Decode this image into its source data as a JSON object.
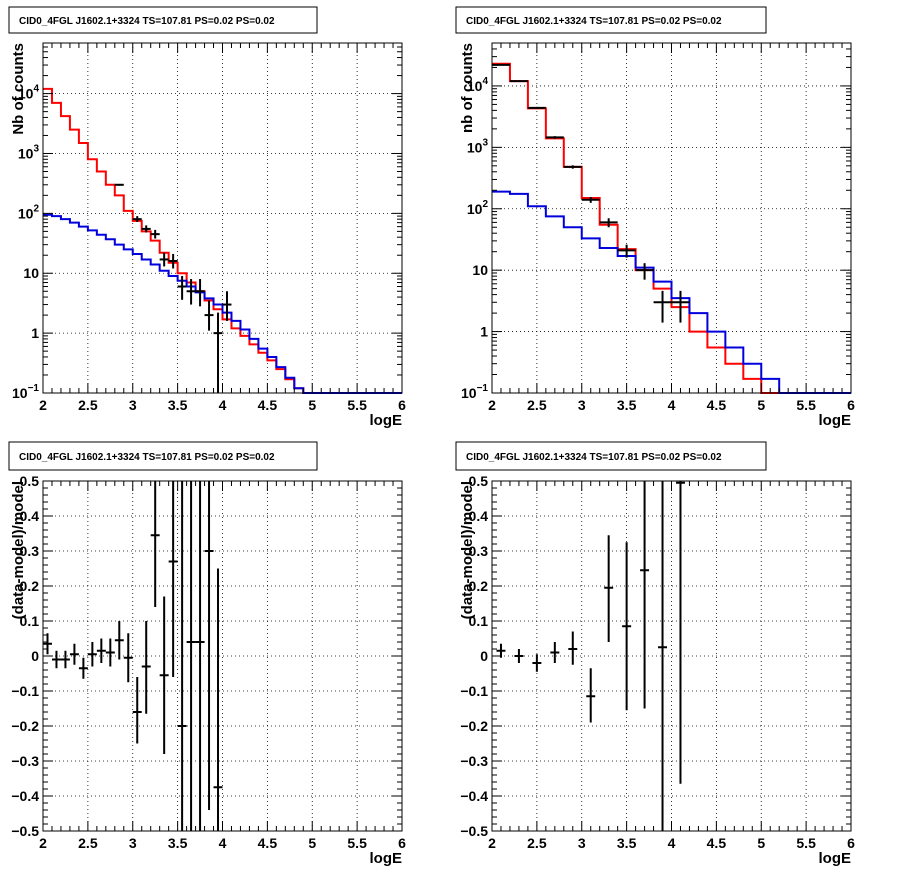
{
  "colors": {
    "data": "#000000",
    "total_model": "#ff0000",
    "background_model": "#0000dd",
    "grid": "#000000"
  },
  "chart_data": [
    {
      "id": "top-left",
      "type": "line",
      "title": "CID0_4FGL J1602.1+3324 TS=107.81 PS=0.02 PS=0.02",
      "xlabel": "logE",
      "ylabel": "Nb of counts",
      "xlim": [
        2,
        6
      ],
      "ylim": [
        0.1,
        70000
      ],
      "yscale": "log",
      "grid": true,
      "xticks": [
        2,
        2.5,
        3,
        3.5,
        4,
        4.5,
        5,
        5.5,
        6
      ],
      "xtick_labels": [
        "2",
        "2.5",
        "3",
        "3.5",
        "4",
        "4.5",
        "5",
        "5.5",
        "6"
      ],
      "yticks": [
        0.1,
        1,
        10,
        100,
        1000,
        10000
      ],
      "ytick_labels": [
        {
          "base": "10",
          "exp": "−1"
        },
        {
          "base": "1",
          "exp": ""
        },
        {
          "base": "10",
          "exp": ""
        },
        {
          "base": "10",
          "exp": "2"
        },
        {
          "base": "10",
          "exp": "3"
        },
        {
          "base": "10",
          "exp": "4"
        }
      ],
      "bin_edges": [
        2,
        2.1,
        2.2,
        2.3,
        2.4,
        2.5,
        2.6,
        2.7,
        2.8,
        2.9,
        3,
        3.1,
        3.2,
        3.3,
        3.4,
        3.5,
        3.6,
        3.7,
        3.8,
        3.9,
        4,
        4.1,
        4.2,
        4.3,
        4.4,
        4.5,
        4.6,
        4.7,
        4.8,
        4.9,
        5,
        5.1,
        5.2,
        5.3,
        5.4,
        5.5,
        5.6,
        5.7,
        5.8,
        5.9,
        6
      ],
      "series": [
        {
          "name": "total model",
          "color": "#ff0000",
          "values": [
            12000,
            7000,
            4200,
            2500,
            1500,
            800,
            500,
            300,
            200,
            110,
            75,
            50,
            35,
            22,
            15,
            10,
            7,
            5,
            3.5,
            2.5,
            1.7,
            1.2,
            0.9,
            0.65,
            0.47,
            0.35,
            0.25,
            0.17,
            0.12,
            0.1,
            0.1,
            0.1,
            0.1,
            0.1,
            0.1,
            0.1,
            0.1,
            0.1,
            0.1,
            0.1
          ]
        },
        {
          "name": "background model",
          "color": "#0000dd",
          "values": [
            95,
            90,
            80,
            70,
            60,
            52,
            44,
            37,
            30,
            25,
            21,
            17,
            14,
            11,
            9,
            7.5,
            6,
            4.8,
            3.8,
            3,
            2.2,
            1.6,
            1.15,
            0.8,
            0.55,
            0.4,
            0.27,
            0.18,
            0.12,
            0.1,
            0.1,
            0.1,
            0.1,
            0.1,
            0.1,
            0.1,
            0.1,
            0.1,
            0.1,
            0.1
          ]
        }
      ],
      "points": [
        {
          "x": 2.85,
          "y": 300,
          "ylo": 290,
          "yhi": 310
        },
        {
          "x": 3.05,
          "y": 80,
          "ylo": 72,
          "yhi": 90
        },
        {
          "x": 3.15,
          "y": 55,
          "ylo": 48,
          "yhi": 63
        },
        {
          "x": 3.25,
          "y": 45,
          "ylo": 38,
          "yhi": 53
        },
        {
          "x": 3.35,
          "y": 17,
          "ylo": 13,
          "yhi": 22
        },
        {
          "x": 3.45,
          "y": 16,
          "ylo": 12,
          "yhi": 21
        },
        {
          "x": 3.55,
          "y": 6,
          "ylo": 3.6,
          "yhi": 9
        },
        {
          "x": 3.65,
          "y": 5,
          "ylo": 3,
          "yhi": 8
        },
        {
          "x": 3.75,
          "y": 5,
          "ylo": 2.8,
          "yhi": 8
        },
        {
          "x": 3.85,
          "y": 2,
          "ylo": 1.1,
          "yhi": 3.5
        },
        {
          "x": 3.95,
          "y": 1,
          "ylo": 0.1,
          "yhi": 2.2
        },
        {
          "x": 4.05,
          "y": 3,
          "ylo": 1.6,
          "yhi": 5
        }
      ]
    },
    {
      "id": "top-right",
      "type": "line",
      "title": "CID0_4FGL J1602.1+3324 TS=107.81 PS=0.02 PS=0.02",
      "xlabel": "logE",
      "ylabel": "nb of counts",
      "xlim": [
        2,
        6
      ],
      "ylim": [
        0.1,
        50000
      ],
      "yscale": "log",
      "grid": true,
      "xticks": [
        2,
        2.5,
        3,
        3.5,
        4,
        4.5,
        5,
        5.5,
        6
      ],
      "xtick_labels": [
        "2",
        "2.5",
        "3",
        "3.5",
        "4",
        "4.5",
        "5",
        "5.5",
        "6"
      ],
      "yticks": [
        0.1,
        1,
        10,
        100,
        1000,
        10000
      ],
      "ytick_labels": [
        {
          "base": "10",
          "exp": "−1"
        },
        {
          "base": "1",
          "exp": ""
        },
        {
          "base": "10",
          "exp": ""
        },
        {
          "base": "10",
          "exp": "2"
        },
        {
          "base": "10",
          "exp": "3"
        },
        {
          "base": "10",
          "exp": "4"
        }
      ],
      "bin_edges": [
        2,
        2.2,
        2.4,
        2.6,
        2.8,
        3,
        3.2,
        3.4,
        3.6,
        3.8,
        4,
        4.2,
        4.4,
        4.6,
        4.8,
        5,
        5.2,
        5.4,
        5.6,
        5.8,
        6
      ],
      "series": [
        {
          "name": "total model",
          "color": "#ff0000",
          "values": [
            23000,
            12000,
            4300,
            1400,
            480,
            150,
            55,
            22,
            10,
            5,
            2.5,
            1,
            0.55,
            0.3,
            0.17,
            0.1,
            0.1,
            0.1,
            0.1,
            0.1
          ]
        },
        {
          "name": "background model",
          "color": "#0000dd",
          "values": [
            190,
            175,
            110,
            75,
            50,
            33,
            23,
            17,
            11,
            6.5,
            3.5,
            2,
            1,
            0.55,
            0.3,
            0.17,
            0.1,
            0.1,
            0.1,
            0.1
          ]
        }
      ],
      "points": [
        {
          "x": 2.1,
          "y": 22000,
          "ylo": 21500,
          "yhi": 22500
        },
        {
          "x": 2.3,
          "y": 12000,
          "ylo": 11700,
          "yhi": 12300
        },
        {
          "x": 2.5,
          "y": 4400,
          "ylo": 4250,
          "yhi": 4550
        },
        {
          "x": 2.7,
          "y": 1450,
          "ylo": 1380,
          "yhi": 1520
        },
        {
          "x": 2.9,
          "y": 480,
          "ylo": 450,
          "yhi": 510
        },
        {
          "x": 3.1,
          "y": 140,
          "ylo": 125,
          "yhi": 155
        },
        {
          "x": 3.3,
          "y": 60,
          "ylo": 50,
          "yhi": 70
        },
        {
          "x": 3.5,
          "y": 21,
          "ylo": 16,
          "yhi": 26
        },
        {
          "x": 3.7,
          "y": 10,
          "ylo": 7,
          "yhi": 13
        },
        {
          "x": 3.9,
          "y": 3,
          "ylo": 1.4,
          "yhi": 4.6
        },
        {
          "x": 4.1,
          "y": 3,
          "ylo": 1.4,
          "yhi": 4.6
        }
      ]
    },
    {
      "id": "bottom-left",
      "type": "scatter",
      "title": "CID0_4FGL J1602.1+3324 TS=107.81 PS=0.02 PS=0.02",
      "xlabel": "logE",
      "ylabel": "(data-model)/model",
      "xlim": [
        2,
        6
      ],
      "ylim": [
        -0.5,
        0.5
      ],
      "yscale": "linear",
      "grid": true,
      "xticks": [
        2,
        2.5,
        3,
        3.5,
        4,
        4.5,
        5,
        5.5,
        6
      ],
      "xtick_labels": [
        "2",
        "2.5",
        "3",
        "3.5",
        "4",
        "4.5",
        "5",
        "5.5",
        "6"
      ],
      "yticks": [
        -0.5,
        -0.4,
        -0.3,
        -0.2,
        -0.1,
        0,
        0.1,
        0.2,
        0.3,
        0.4,
        0.5
      ],
      "ytick_labels": [
        "−0.5",
        "−0.4",
        "−0.3",
        "−0.2",
        "−0.1",
        "0",
        "0.1",
        "0.2",
        "0.3",
        "0.4",
        "0.5"
      ],
      "series": [],
      "points": [
        {
          "x": 2.05,
          "y": 0.035,
          "ylo": 0.005,
          "yhi": 0.065
        },
        {
          "x": 2.15,
          "y": -0.01,
          "ylo": -0.035,
          "yhi": 0.015
        },
        {
          "x": 2.25,
          "y": -0.01,
          "ylo": -0.035,
          "yhi": 0.015
        },
        {
          "x": 2.35,
          "y": 0.005,
          "ylo": -0.025,
          "yhi": 0.035
        },
        {
          "x": 2.45,
          "y": -0.035,
          "ylo": -0.065,
          "yhi": -0.005
        },
        {
          "x": 2.55,
          "y": 0.005,
          "ylo": -0.03,
          "yhi": 0.04
        },
        {
          "x": 2.65,
          "y": 0.015,
          "ylo": -0.02,
          "yhi": 0.05
        },
        {
          "x": 2.75,
          "y": 0.01,
          "ylo": -0.03,
          "yhi": 0.05
        },
        {
          "x": 2.85,
          "y": 0.045,
          "ylo": -0.01,
          "yhi": 0.1
        },
        {
          "x": 2.95,
          "y": -0.005,
          "ylo": -0.075,
          "yhi": 0.065
        },
        {
          "x": 3.05,
          "y": -0.16,
          "ylo": -0.25,
          "yhi": -0.06
        },
        {
          "x": 3.15,
          "y": -0.03,
          "ylo": -0.165,
          "yhi": 0.1
        },
        {
          "x": 3.25,
          "y": 0.345,
          "ylo": 0.14,
          "yhi": 0.5
        },
        {
          "x": 3.35,
          "y": -0.055,
          "ylo": -0.28,
          "yhi": 0.17
        },
        {
          "x": 3.45,
          "y": 0.27,
          "ylo": -0.06,
          "yhi": 0.5
        },
        {
          "x": 3.55,
          "y": -0.2,
          "ylo": -0.5,
          "yhi": 0.5
        },
        {
          "x": 3.65,
          "y": 0.04,
          "ylo": -0.5,
          "yhi": 0.5
        },
        {
          "x": 3.75,
          "y": 0.04,
          "ylo": -0.5,
          "yhi": 0.5
        },
        {
          "x": 3.85,
          "y": 0.3,
          "ylo": -0.44,
          "yhi": 0.5
        },
        {
          "x": 3.95,
          "y": -0.375,
          "ylo": -0.5,
          "yhi": 0.25
        }
      ]
    },
    {
      "id": "bottom-right",
      "type": "scatter",
      "title": "CID0_4FGL J1602.1+3324 TS=107.81 PS=0.02 PS=0.02",
      "xlabel": "logE",
      "ylabel": "(data-model)/model",
      "xlim": [
        2,
        6
      ],
      "ylim": [
        -0.5,
        0.5
      ],
      "yscale": "linear",
      "grid": true,
      "xticks": [
        2,
        2.5,
        3,
        3.5,
        4,
        4.5,
        5,
        5.5,
        6
      ],
      "xtick_labels": [
        "2",
        "2.5",
        "3",
        "3.5",
        "4",
        "4.5",
        "5",
        "5.5",
        "6"
      ],
      "yticks": [
        -0.5,
        -0.4,
        -0.3,
        -0.2,
        -0.1,
        0,
        0.1,
        0.2,
        0.3,
        0.4,
        0.5
      ],
      "ytick_labels": [
        "−0.5",
        "−0.4",
        "−0.3",
        "−0.2",
        "−0.1",
        "0",
        "0.1",
        "0.2",
        "0.3",
        "0.4",
        "0.5"
      ],
      "series": [],
      "points": [
        {
          "x": 2.1,
          "y": 0.015,
          "ylo": -0.005,
          "yhi": 0.035
        },
        {
          "x": 2.3,
          "y": 0.0,
          "ylo": -0.02,
          "yhi": 0.02
        },
        {
          "x": 2.5,
          "y": -0.02,
          "ylo": -0.045,
          "yhi": 0.005
        },
        {
          "x": 2.7,
          "y": 0.01,
          "ylo": -0.02,
          "yhi": 0.04
        },
        {
          "x": 2.9,
          "y": 0.02,
          "ylo": -0.025,
          "yhi": 0.07
        },
        {
          "x": 3.1,
          "y": -0.115,
          "ylo": -0.19,
          "yhi": -0.035
        },
        {
          "x": 3.3,
          "y": 0.195,
          "ylo": 0.04,
          "yhi": 0.345
        },
        {
          "x": 3.5,
          "y": 0.085,
          "ylo": -0.155,
          "yhi": 0.325
        },
        {
          "x": 3.7,
          "y": 0.245,
          "ylo": -0.15,
          "yhi": 0.5
        },
        {
          "x": 3.9,
          "y": 0.025,
          "ylo": -0.5,
          "yhi": 0.5
        },
        {
          "x": 4.1,
          "y": 0.495,
          "ylo": -0.365,
          "yhi": 0.5
        }
      ]
    }
  ]
}
